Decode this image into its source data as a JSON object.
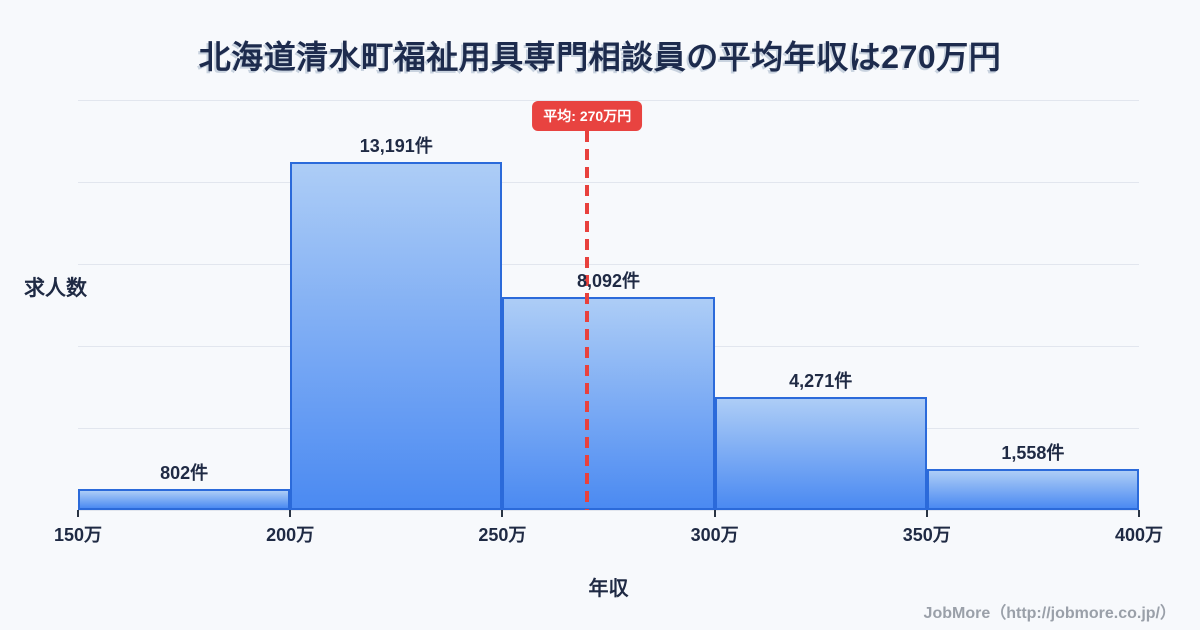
{
  "title": "北海道清水町福祉用具専門相談員の平均年収は270万円",
  "footer": {
    "credit": "JobMore（http://jobmore.co.jp/）"
  },
  "colors": {
    "background": "#f7f9fc",
    "ink": "#1f2a44",
    "gridline": "#e2e6ee",
    "bar_border": "#2b6ada",
    "bar_gradient_top": "#adcdf6",
    "bar_gradient_bottom": "#4b8af2",
    "accent_red": "#e84340",
    "credit_gray": "#9aa0a9"
  },
  "chart_data": {
    "type": "bar",
    "subtype": "histogram",
    "title": "北海道清水町福祉用具専門相談員の平均年収は270万円",
    "xlabel": "年収",
    "ylabel": "求人数",
    "grid": true,
    "legend": false,
    "bin_edges": [
      150,
      200,
      250,
      300,
      350,
      400
    ],
    "bin_edge_labels": [
      "150万",
      "200万",
      "250万",
      "300万",
      "350万",
      "400万"
    ],
    "values": [
      802,
      13191,
      8092,
      4271,
      1558
    ],
    "value_labels": [
      "802件",
      "13,191件",
      "8,092件",
      "4,271件",
      "1,558件"
    ],
    "average": {
      "value": 270,
      "label": "平均: 270万円"
    },
    "x_range": [
      150,
      400
    ]
  }
}
